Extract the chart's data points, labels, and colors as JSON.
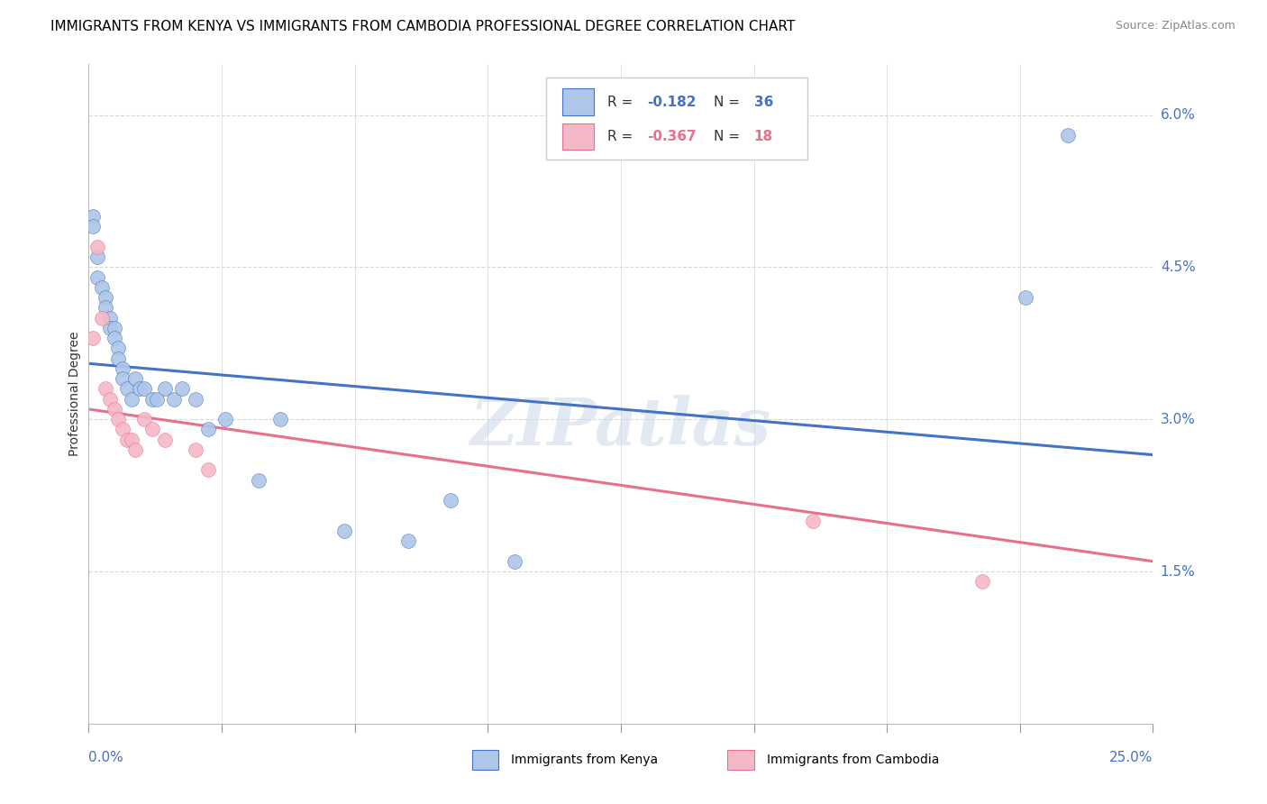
{
  "title": "IMMIGRANTS FROM KENYA VS IMMIGRANTS FROM CAMBODIA PROFESSIONAL DEGREE CORRELATION CHART",
  "source": "Source: ZipAtlas.com",
  "ylabel": "Professional Degree",
  "xlim": [
    0.0,
    0.25
  ],
  "ylim": [
    0.0,
    0.065
  ],
  "watermark": "ZIPatlas",
  "kenya_color": "#aec6e8",
  "cambodia_color": "#f4b8c8",
  "kenya_line_color": "#4472c4",
  "cambodia_line_color": "#e8708a",
  "kenya_R": "-0.182",
  "kenya_N": "36",
  "cambodia_R": "-0.367",
  "cambodia_N": "18",
  "kenya_line_x0": 0.0,
  "kenya_line_y0": 0.0355,
  "kenya_line_x1": 0.25,
  "kenya_line_y1": 0.0265,
  "cambodia_line_x0": 0.0,
  "cambodia_line_y0": 0.031,
  "cambodia_line_x1": 0.25,
  "cambodia_line_y1": 0.016,
  "background_color": "#ffffff",
  "grid_color": "#d8d8d8",
  "title_fontsize": 11,
  "axis_label_fontsize": 10,
  "tick_fontsize": 11,
  "legend_fontsize": 11,
  "source_fontsize": 9,
  "kenya_x": [
    0.001,
    0.001,
    0.002,
    0.002,
    0.003,
    0.004,
    0.004,
    0.005,
    0.005,
    0.006,
    0.006,
    0.007,
    0.007,
    0.008,
    0.008,
    0.009,
    0.01,
    0.011,
    0.012,
    0.013,
    0.015,
    0.016,
    0.018,
    0.02,
    0.022,
    0.025,
    0.028,
    0.032,
    0.04,
    0.045,
    0.06,
    0.075,
    0.085,
    0.1,
    0.22,
    0.23
  ],
  "kenya_y": [
    0.05,
    0.049,
    0.046,
    0.044,
    0.043,
    0.042,
    0.041,
    0.04,
    0.039,
    0.039,
    0.038,
    0.037,
    0.036,
    0.035,
    0.034,
    0.033,
    0.032,
    0.034,
    0.033,
    0.033,
    0.032,
    0.032,
    0.033,
    0.032,
    0.033,
    0.032,
    0.029,
    0.03,
    0.024,
    0.03,
    0.019,
    0.018,
    0.022,
    0.016,
    0.042,
    0.058
  ],
  "cambodia_x": [
    0.001,
    0.002,
    0.003,
    0.004,
    0.005,
    0.006,
    0.007,
    0.008,
    0.009,
    0.01,
    0.011,
    0.013,
    0.015,
    0.018,
    0.025,
    0.028,
    0.17,
    0.21
  ],
  "cambodia_y": [
    0.038,
    0.047,
    0.04,
    0.033,
    0.032,
    0.031,
    0.03,
    0.029,
    0.028,
    0.028,
    0.027,
    0.03,
    0.029,
    0.028,
    0.027,
    0.025,
    0.02,
    0.014
  ]
}
